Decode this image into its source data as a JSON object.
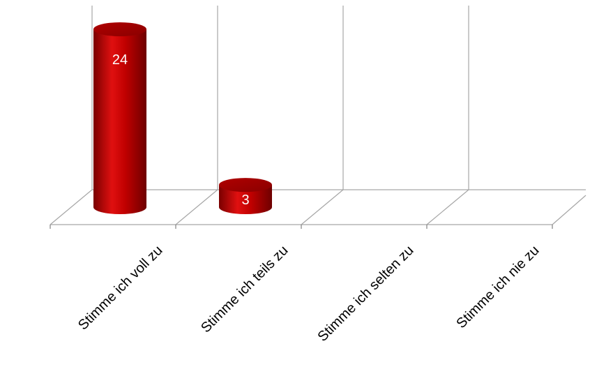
{
  "chart_data": {
    "type": "bar",
    "style": "3d-cylinder",
    "categories": [
      "Stimme ich voll zu",
      "Stimme ich teils zu",
      "Stimme ich selten zu",
      "Stimme ich nie zu"
    ],
    "values": [
      24,
      3,
      0,
      0
    ],
    "data_labels": [
      "24",
      "3",
      "",
      ""
    ],
    "bar_color": "#c00000",
    "ylim": [
      0,
      27
    ],
    "grid": true,
    "legend": "none"
  }
}
